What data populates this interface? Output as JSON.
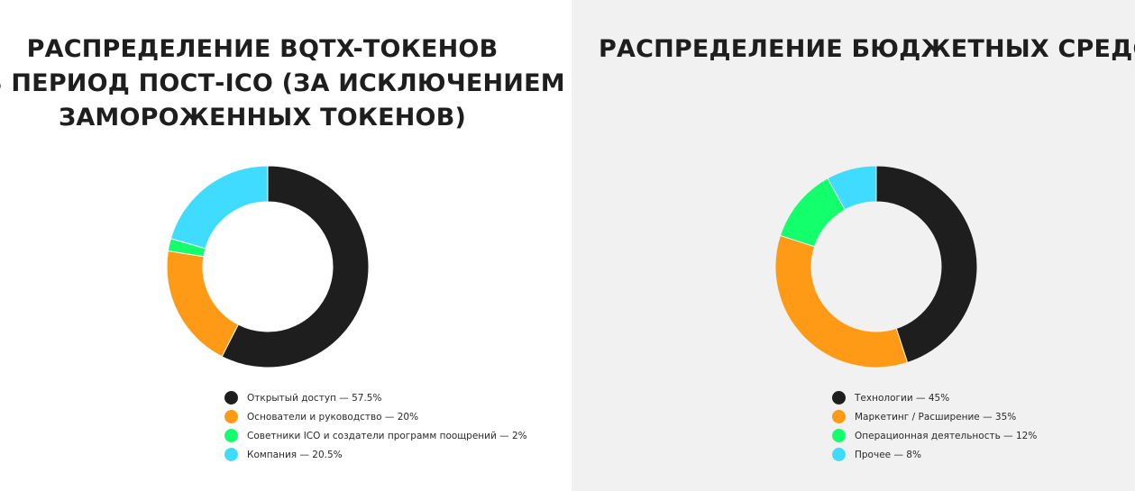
{
  "chart_data": [
    {
      "type": "pie",
      "title": [
        "РАСПРЕДЕЛЕНИЕ BQTX-ТОКЕНОВ",
        "В ПЕРИОД ПОСТ-ICO (ЗА ИСКЛЮЧЕНИЕМ",
        "ЗАМОРОЖЕННЫХ ТОКЕНОВ)"
      ],
      "legend": "bottom",
      "slices": [
        {
          "label": "Открытый доступ — 57.5%",
          "value": 57.5,
          "color": "#1e1e1e"
        },
        {
          "label": "Основатели и руководство — 20%",
          "value": 20,
          "color": "#ff9a17"
        },
        {
          "label": "Советники ICO и создатели программ поощрений — 2%",
          "value": 2,
          "color": "#14ff6c"
        },
        {
          "label": "Компания — 20.5%",
          "value": 20.5,
          "color": "#40dcff"
        }
      ]
    },
    {
      "type": "pie",
      "title": [
        "РАСПРЕДЕЛЕНИЕ БЮДЖЕТНЫХ СРЕДСВ"
      ],
      "legend": "bottom",
      "slices": [
        {
          "label": "Технологии — 45%",
          "value": 45,
          "color": "#1e1e1e"
        },
        {
          "label": "Маркетинг / Расширение — 35%",
          "value": 35,
          "color": "#ff9a17"
        },
        {
          "label": "Операционная деятельность — 12%",
          "value": 12,
          "color": "#14ff6c"
        },
        {
          "label": "Прочее — 8%",
          "value": 8,
          "color": "#40dcff"
        }
      ]
    }
  ]
}
